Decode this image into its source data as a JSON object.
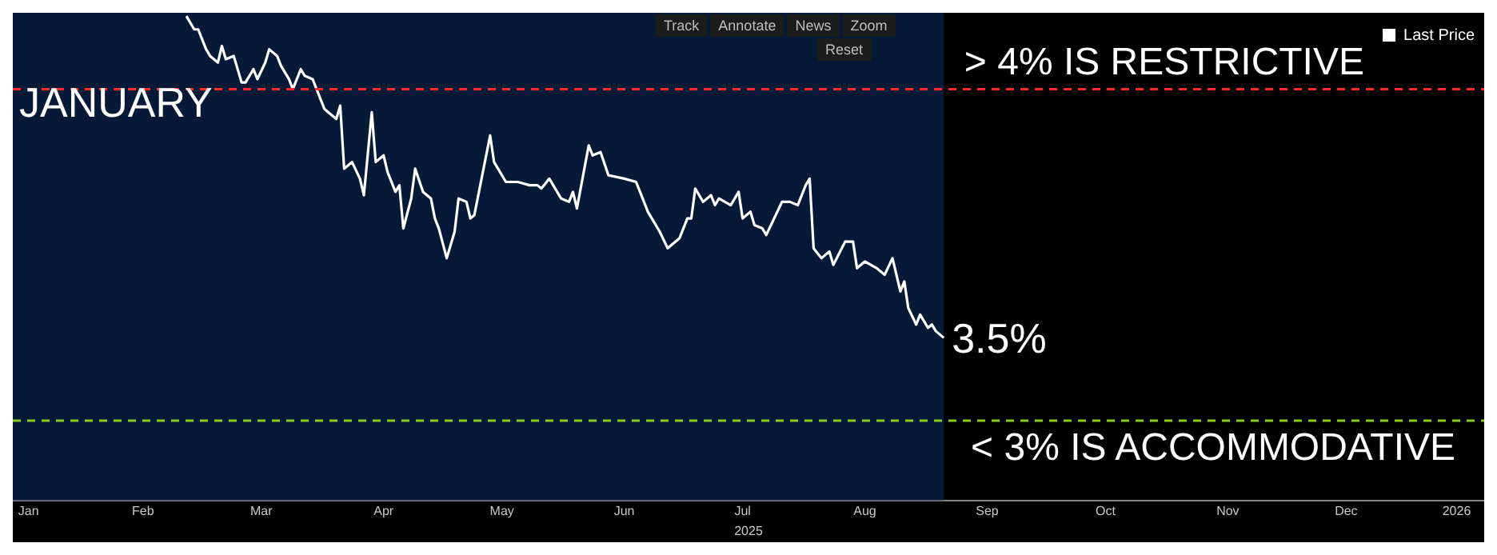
{
  "chart_data": {
    "type": "line",
    "x": [
      "2025-02-25",
      "2025-02-27",
      "2025-02-28",
      "2025-03-02",
      "2025-03-03",
      "2025-03-05",
      "2025-03-06",
      "2025-03-07",
      "2025-03-09",
      "2025-03-11",
      "2025-03-12",
      "2025-03-14",
      "2025-03-15",
      "2025-03-17",
      "2025-03-18",
      "2025-03-20",
      "2025-03-21",
      "2025-03-23",
      "2025-03-24",
      "2025-03-26",
      "2025-03-27",
      "2025-03-29",
      "2025-03-30",
      "2025-04-01",
      "2025-04-02",
      "2025-04-04",
      "2025-04-05",
      "2025-04-06",
      "2025-04-08",
      "2025-04-10",
      "2025-04-11",
      "2025-04-13",
      "2025-04-14",
      "2025-04-16",
      "2025-04-17",
      "2025-04-19",
      "2025-04-20",
      "2025-04-21",
      "2025-04-23",
      "2025-04-24",
      "2025-04-26",
      "2025-04-28",
      "2025-04-29",
      "2025-04-30",
      "2025-05-02",
      "2025-05-04",
      "2025-05-05",
      "2025-05-07",
      "2025-05-08",
      "2025-05-09",
      "2025-05-11",
      "2025-05-13",
      "2025-05-14",
      "2025-05-15",
      "2025-05-17",
      "2025-05-20",
      "2025-05-23",
      "2025-05-25",
      "2025-05-26",
      "2025-05-28",
      "2025-05-31",
      "2025-06-02",
      "2025-06-03",
      "2025-06-04",
      "2025-06-07",
      "2025-06-08",
      "2025-06-10",
      "2025-06-12",
      "2025-06-16",
      "2025-06-19",
      "2025-06-20",
      "2025-06-22",
      "2025-06-25",
      "2025-06-27",
      "2025-06-28",
      "2025-06-30",
      "2025-07-02",
      "2025-07-03",
      "2025-07-04",
      "2025-07-06",
      "2025-07-08",
      "2025-07-09",
      "2025-07-10",
      "2025-07-13",
      "2025-07-15",
      "2025-07-16",
      "2025-07-18",
      "2025-07-19",
      "2025-07-21",
      "2025-07-22",
      "2025-07-26",
      "2025-07-28",
      "2025-07-30",
      "2025-08-01",
      "2025-08-02",
      "2025-08-03",
      "2025-08-05",
      "2025-08-07",
      "2025-08-08",
      "2025-08-11",
      "2025-08-13",
      "2025-08-14",
      "2025-08-16",
      "2025-08-19",
      "2025-08-21",
      "2025-08-23",
      "2025-08-25",
      "2025-08-26",
      "2025-08-27",
      "2025-08-29",
      "2025-08-30",
      "2025-09-01",
      "2025-09-02",
      "2025-09-03",
      "2025-09-05"
    ],
    "series": [
      {
        "name": "Last Price",
        "color": "#ffffff",
        "values": [
          4.22,
          4.18,
          4.18,
          4.12,
          4.1,
          4.08,
          4.13,
          4.09,
          4.1,
          4.02,
          4.02,
          4.06,
          4.03,
          4.08,
          4.12,
          4.1,
          4.07,
          4.03,
          4.0,
          4.06,
          4.04,
          4.03,
          4.0,
          3.94,
          3.93,
          3.91,
          3.95,
          3.76,
          3.78,
          3.73,
          3.68,
          3.93,
          3.78,
          3.8,
          3.75,
          3.69,
          3.71,
          3.58,
          3.67,
          3.76,
          3.69,
          3.67,
          3.61,
          3.58,
          3.49,
          3.57,
          3.67,
          3.66,
          3.61,
          3.62,
          3.74,
          3.86,
          3.78,
          3.76,
          3.72,
          3.72,
          3.71,
          3.71,
          3.7,
          3.73,
          3.67,
          3.66,
          3.69,
          3.64,
          3.83,
          3.8,
          3.81,
          3.74,
          3.73,
          3.72,
          3.69,
          3.63,
          3.57,
          3.52,
          3.53,
          3.55,
          3.61,
          3.61,
          3.7,
          3.66,
          3.68,
          3.65,
          3.67,
          3.65,
          3.69,
          3.61,
          3.63,
          3.59,
          3.58,
          3.56,
          3.66,
          3.66,
          3.65,
          3.71,
          3.73,
          3.52,
          3.49,
          3.51,
          3.47,
          3.54,
          3.54,
          3.46,
          3.48,
          3.46,
          3.44,
          3.49,
          3.39,
          3.42,
          3.34,
          3.29,
          3.32,
          3.28,
          3.29,
          3.27,
          3.25
        ]
      }
    ],
    "xlim": [
      "2025-01-12",
      "2026-01-20"
    ],
    "xticks": [
      {
        "value": "2025-01-16",
        "label": "Jan"
      },
      {
        "value": "2025-02-14",
        "label": "Feb"
      },
      {
        "value": "2025-03-16",
        "label": "Mar"
      },
      {
        "value": "2025-04-16",
        "label": "Apr"
      },
      {
        "value": "2025-05-16",
        "label": "May"
      },
      {
        "value": "2025-06-16",
        "label": "Jun"
      },
      {
        "value": "2025-07-16",
        "label": "Jul"
      },
      {
        "value": "2025-08-16",
        "label": "Aug"
      },
      {
        "value": "2025-09-16",
        "label": "Sep"
      },
      {
        "value": "2025-10-16",
        "label": "Oct"
      },
      {
        "value": "2025-11-16",
        "label": "Nov"
      },
      {
        "value": "2025-12-16",
        "label": "Dec"
      },
      {
        "value": "2026-01-13",
        "label": "2026"
      }
    ],
    "xlabel": "2025",
    "ylim": [
      2.76,
      4.23
    ],
    "tick_labels": "x",
    "grid": false,
    "legend": "top right",
    "marker": "none",
    "bands": [
      {
        "axis": "x",
        "from": "2025-01-12",
        "to": "2025-09-05",
        "color": "#061a38"
      }
    ],
    "ref_lines": [
      {
        "axis": "y",
        "value": 4,
        "label": "> 4% IS RESTRICTIVE",
        "color": "#ff2a2a",
        "line_style": "dashed"
      },
      {
        "axis": "y",
        "value": 3,
        "label": "< 3% IS ACCOMMODATIVE",
        "color": "#8acb1e",
        "line_style": "dashed"
      }
    ],
    "annotations": [
      "JANUARY",
      "3.5%",
      "Track",
      "Annotate",
      "News",
      "Zoom",
      "Reset"
    ]
  }
}
